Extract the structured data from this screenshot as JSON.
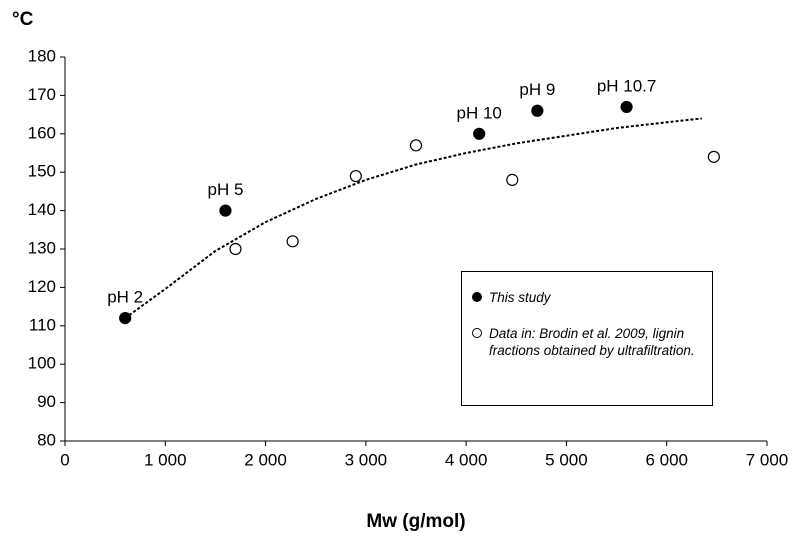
{
  "chart_data": {
    "type": "scatter",
    "y_label": "°C",
    "x_label": "Mw (g/mol)",
    "xlim": [
      0,
      7000
    ],
    "xticks": [
      0,
      {
        "value": 1000,
        "label": "1 000"
      },
      {
        "value": 2000,
        "label": "2 000"
      },
      {
        "value": 3000,
        "label": "3 000"
      },
      {
        "value": 4000,
        "label": "4 000"
      },
      {
        "value": 5000,
        "label": "5 000"
      },
      {
        "value": 6000,
        "label": "6 000"
      },
      {
        "value": 7000,
        "label": "7 000"
      }
    ],
    "ylim": [
      80,
      180
    ],
    "yticks": [
      80,
      90,
      100,
      110,
      120,
      130,
      140,
      150,
      160,
      170,
      180
    ],
    "series": [
      {
        "name": "This study",
        "color": "#000000",
        "filled": true,
        "x": [
          600,
          1600,
          4130,
          4710,
          5600
        ],
        "values": [
          112,
          140,
          160,
          166,
          167
        ],
        "point_labels": [
          "pH 2",
          "pH 5",
          "pH 10",
          "pH 9",
          "pH 10.7"
        ]
      },
      {
        "name": "Data in: Brodin et al. 2009, lignin fractions obtained by ultrafiltration.",
        "color": "#000000",
        "filled": false,
        "x": [
          1700,
          2270,
          2900,
          3500,
          4460,
          6470
        ],
        "values": [
          130,
          132,
          149,
          157,
          148,
          154
        ]
      }
    ],
    "trendline": {
      "color": "#000000",
      "x": [
        600,
        1000,
        1500,
        2000,
        2500,
        3000,
        3500,
        4000,
        4500,
        5000,
        5500,
        6000,
        6350
      ],
      "values": [
        112,
        119.6,
        129.5,
        137,
        143,
        148,
        152,
        155,
        157.5,
        159.5,
        161.5,
        163,
        164
      ]
    }
  }
}
